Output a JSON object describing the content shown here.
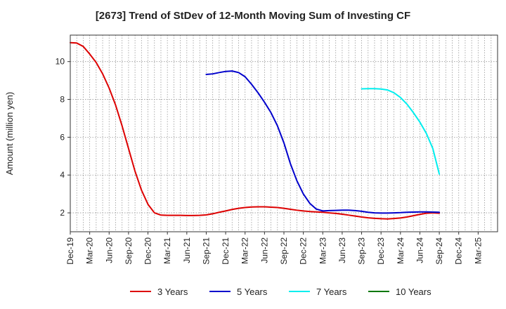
{
  "chart_data": {
    "type": "line",
    "title": "[2673]  Trend of StDev of 12-Month Moving Sum of Investing CF",
    "xlabel": "",
    "ylabel": "Amount (million yen)",
    "ylim": [
      1,
      11.4
    ],
    "yticks": [
      2,
      4,
      6,
      8,
      10
    ],
    "xtick_labels": [
      "Dec-19",
      "Mar-20",
      "Jun-20",
      "Sep-20",
      "Dec-20",
      "Mar-21",
      "Jun-21",
      "Sep-21",
      "Dec-21",
      "Mar-22",
      "Jun-22",
      "Sep-22",
      "Dec-22",
      "Mar-23",
      "Jun-23",
      "Sep-23",
      "Dec-23",
      "Mar-24",
      "Jun-24",
      "Sep-24",
      "Dec-24",
      "Mar-25"
    ],
    "grid": true,
    "legend_position": "bottom",
    "series": [
      {
        "name": "3 Years",
        "color": "#dd0000",
        "x": [
          "Dec-19",
          "Jan-20",
          "Feb-20",
          "Mar-20",
          "Apr-20",
          "May-20",
          "Jun-20",
          "Jul-20",
          "Aug-20",
          "Sep-20",
          "Oct-20",
          "Nov-20",
          "Dec-20",
          "Jan-21",
          "Feb-21",
          "Mar-21",
          "Apr-21",
          "May-21",
          "Jun-21",
          "Jul-21",
          "Aug-21",
          "Sep-21",
          "Oct-21",
          "Nov-21",
          "Dec-21",
          "Jan-22",
          "Feb-22",
          "Mar-22",
          "Apr-22",
          "May-22",
          "Jun-22",
          "Jul-22",
          "Aug-22",
          "Sep-22",
          "Oct-22",
          "Nov-22",
          "Dec-22",
          "Jan-23",
          "Feb-23",
          "Mar-23",
          "Apr-23",
          "May-23",
          "Jun-23",
          "Jul-23",
          "Aug-23",
          "Sep-23",
          "Oct-23",
          "Nov-23",
          "Dec-23",
          "Jan-24",
          "Feb-24",
          "Mar-24",
          "Apr-24",
          "May-24",
          "Jun-24",
          "Jul-24",
          "Aug-24",
          "Sep-24"
        ],
        "values": [
          11.0,
          10.98,
          10.8,
          10.4,
          9.95,
          9.35,
          8.6,
          7.7,
          6.6,
          5.4,
          4.2,
          3.2,
          2.45,
          2.0,
          1.88,
          1.87,
          1.87,
          1.87,
          1.86,
          1.86,
          1.87,
          1.89,
          1.95,
          2.03,
          2.1,
          2.18,
          2.24,
          2.28,
          2.31,
          2.32,
          2.32,
          2.3,
          2.28,
          2.24,
          2.19,
          2.14,
          2.1,
          2.07,
          2.05,
          2.03,
          2.0,
          1.97,
          1.93,
          1.88,
          1.83,
          1.78,
          1.74,
          1.71,
          1.69,
          1.68,
          1.7,
          1.73,
          1.78,
          1.85,
          1.92,
          1.98,
          2.0,
          1.98
        ]
      },
      {
        "name": "5 Years",
        "color": "#0000cc",
        "x": [
          "Sep-21",
          "Oct-21",
          "Nov-21",
          "Dec-21",
          "Jan-22",
          "Feb-22",
          "Mar-22",
          "Apr-22",
          "May-22",
          "Jun-22",
          "Jul-22",
          "Aug-22",
          "Sep-22",
          "Oct-22",
          "Nov-22",
          "Dec-22",
          "Jan-23",
          "Feb-23",
          "Mar-23",
          "Apr-23",
          "May-23",
          "Jun-23",
          "Jul-23",
          "Aug-23",
          "Sep-23",
          "Oct-23",
          "Nov-23",
          "Dec-23",
          "Jan-24",
          "Feb-24",
          "Mar-24",
          "Apr-24",
          "May-24",
          "Jun-24",
          "Jul-24",
          "Aug-24",
          "Sep-24"
        ],
        "values": [
          9.32,
          9.35,
          9.42,
          9.48,
          9.5,
          9.42,
          9.2,
          8.8,
          8.35,
          7.85,
          7.3,
          6.6,
          5.7,
          4.6,
          3.7,
          3.0,
          2.5,
          2.2,
          2.1,
          2.12,
          2.13,
          2.14,
          2.14,
          2.12,
          2.08,
          2.03,
          2.0,
          1.99,
          1.99,
          2.0,
          2.01,
          2.03,
          2.04,
          2.05,
          2.05,
          2.04,
          2.03
        ]
      },
      {
        "name": "7 Years",
        "color": "#00eeee",
        "x": [
          "Sep-23",
          "Oct-23",
          "Nov-23",
          "Dec-23",
          "Jan-24",
          "Feb-24",
          "Mar-24",
          "Apr-24",
          "May-24",
          "Jun-24",
          "Jul-24",
          "Aug-24",
          "Sep-24"
        ],
        "values": [
          8.56,
          8.57,
          8.57,
          8.55,
          8.5,
          8.35,
          8.1,
          7.75,
          7.3,
          6.8,
          6.2,
          5.4,
          4.05
        ]
      },
      {
        "name": "10 Years",
        "color": "#007700",
        "x": [],
        "values": []
      }
    ]
  }
}
